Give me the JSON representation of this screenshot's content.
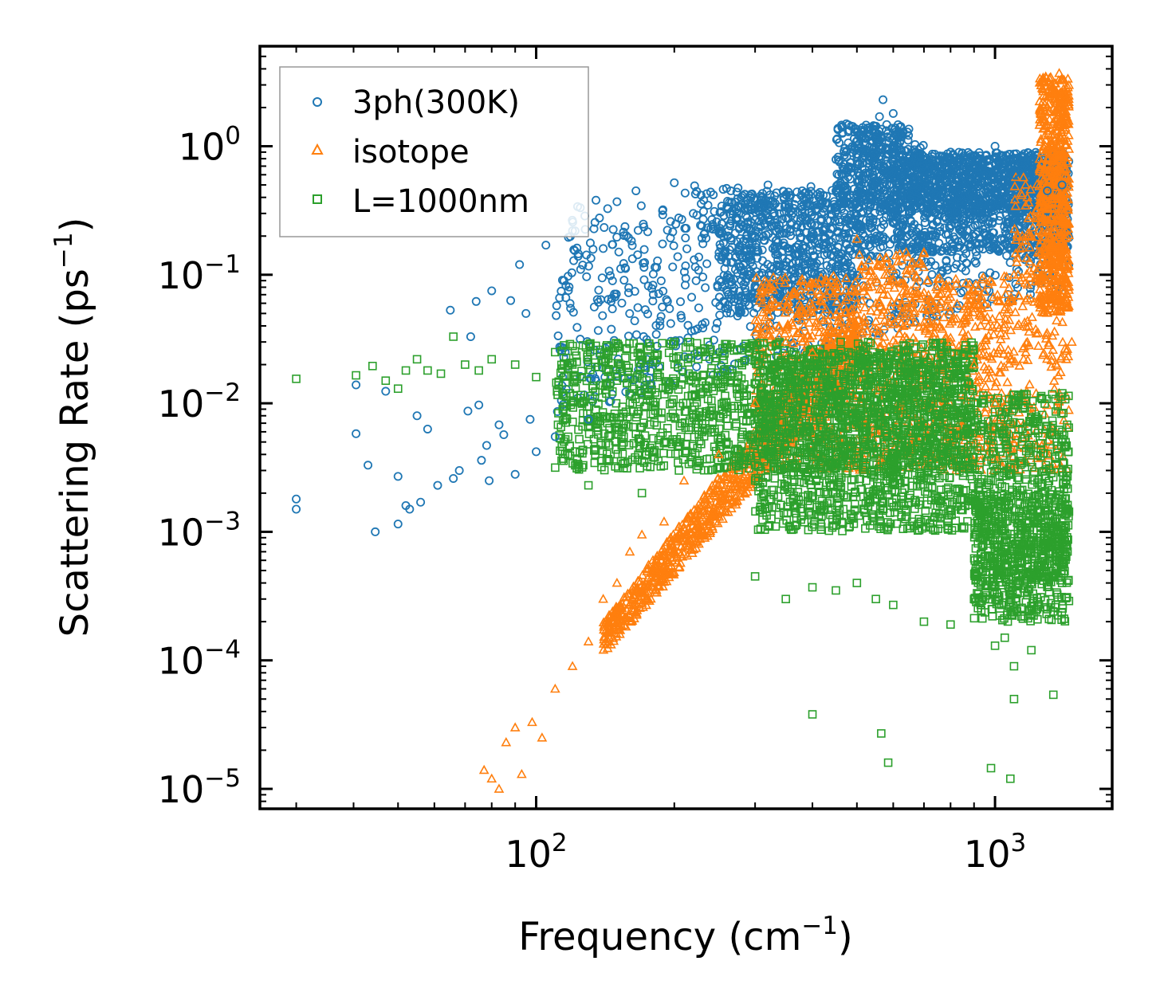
{
  "chart_data": {
    "type": "scatter",
    "title": "",
    "xlabel": "Frequency (cm",
    "xlabel_sup": "−1",
    "xlabel_close": ")",
    "ylabel": "Scattering Rate (ps",
    "ylabel_sup": "−1",
    "ylabel_close": ")",
    "xscale": "log",
    "yscale": "log",
    "xlim": [
      25,
      1800
    ],
    "ylim": [
      7e-06,
      6
    ],
    "grid": false,
    "legend_position": "top-left",
    "x_ticks": [
      {
        "value": 100,
        "base": "10",
        "exp": "2"
      },
      {
        "value": 1000,
        "base": "10",
        "exp": "3"
      }
    ],
    "y_ticks": [
      {
        "value": 1e-05,
        "base": "10",
        "exp": "−5"
      },
      {
        "value": 0.0001,
        "base": "10",
        "exp": "−4"
      },
      {
        "value": 0.001,
        "base": "10",
        "exp": "−3"
      },
      {
        "value": 0.01,
        "base": "10",
        "exp": "−2"
      },
      {
        "value": 0.1,
        "base": "10",
        "exp": "−1"
      },
      {
        "value": 1,
        "base": "10",
        "exp": "0"
      }
    ],
    "series": [
      {
        "name": "3ph(300K)",
        "marker": "circle",
        "color": "#1f77b4",
        "sample_points": [
          [
            30,
            0.0018
          ],
          [
            30,
            0.0015
          ],
          [
            40.5,
            0.0139
          ],
          [
            40.5,
            0.0058
          ],
          [
            43,
            0.0033
          ],
          [
            44.6,
            0.001
          ],
          [
            47,
            0.0124
          ],
          [
            50,
            0.0027
          ],
          [
            50,
            0.00115
          ],
          [
            52,
            0.0016
          ],
          [
            53,
            0.0015
          ],
          [
            55,
            0.008
          ],
          [
            56,
            0.0017
          ],
          [
            58,
            0.0063
          ],
          [
            61,
            0.0023
          ],
          [
            65,
            0.053
          ],
          [
            66,
            0.0026
          ],
          [
            68,
            0.003
          ],
          [
            71,
            0.0087
          ],
          [
            72,
            0.033
          ],
          [
            74,
            0.062
          ],
          [
            75,
            0.0097
          ],
          [
            76,
            0.0036
          ],
          [
            78,
            0.0047
          ],
          [
            79,
            0.0025
          ],
          [
            80,
            0.075
          ],
          [
            83,
            0.0068
          ],
          [
            85,
            0.0057
          ],
          [
            88,
            0.063
          ],
          [
            90,
            0.0028
          ],
          [
            92,
            0.12
          ],
          [
            95,
            0.05
          ],
          [
            97,
            0.0075
          ],
          [
            100,
            0.0042
          ],
          [
            105,
            0.17
          ],
          [
            110,
            0.0055
          ],
          [
            115,
            0.09
          ],
          [
            120,
            0.22
          ],
          [
            125,
            0.11
          ],
          [
            130,
            0.0075
          ],
          [
            135,
            0.38
          ],
          [
            140,
            0.16
          ],
          [
            150,
            0.37
          ],
          [
            165,
            0.45
          ],
          [
            180,
            0.07
          ],
          [
            200,
            0.52
          ],
          [
            220,
            0.3
          ],
          [
            240,
            0.44
          ],
          [
            260,
            0.47
          ],
          [
            280,
            0.4
          ],
          [
            300,
            0.2
          ],
          [
            320,
            0.5
          ],
          [
            350,
            0.42
          ],
          [
            380,
            0.45
          ],
          [
            420,
            0.36
          ],
          [
            450,
            0.45
          ],
          [
            500,
            1.3
          ],
          [
            560,
            1.7
          ],
          [
            570,
            2.3
          ],
          [
            600,
            1.8
          ],
          [
            650,
            0.8
          ],
          [
            700,
            0.55
          ],
          [
            800,
            0.9
          ],
          [
            900,
            0.52
          ],
          [
            1000,
            1.0
          ],
          [
            1100,
            0.6
          ],
          [
            1200,
            0.7
          ],
          [
            1300,
            0.45
          ],
          [
            1400,
            0.5
          ]
        ]
      },
      {
        "name": "isotope",
        "marker": "triangle",
        "color": "#ff7f0e",
        "sample_points": [
          [
            77,
            1.4e-05
          ],
          [
            80,
            1.2e-05
          ],
          [
            83,
            1e-05
          ],
          [
            86,
            2.3e-05
          ],
          [
            90,
            3e-05
          ],
          [
            93,
            1.3e-05
          ],
          [
            98,
            3.3e-05
          ],
          [
            103,
            2.5e-05
          ],
          [
            110,
            6e-05
          ],
          [
            120,
            9e-05
          ],
          [
            130,
            0.00014
          ],
          [
            140,
            0.0003
          ],
          [
            150,
            0.0004
          ],
          [
            160,
            0.0007
          ],
          [
            170,
            0.00095
          ],
          [
            190,
            0.0012
          ],
          [
            210,
            0.0025
          ],
          [
            250,
            0.004
          ],
          [
            300,
            0.01
          ],
          [
            350,
            0.03
          ],
          [
            400,
            0.025
          ],
          [
            450,
            0.08
          ],
          [
            500,
            0.19
          ],
          [
            550,
            0.06
          ],
          [
            600,
            0.11
          ],
          [
            650,
            0.05
          ],
          [
            700,
            0.15
          ],
          [
            800,
            0.03
          ],
          [
            900,
            0.02
          ],
          [
            1000,
            0.01
          ],
          [
            1100,
            0.1
          ],
          [
            1200,
            0.2
          ],
          [
            1300,
            0.8
          ],
          [
            1380,
            3.7
          ],
          [
            1450,
            0.25
          ],
          [
            1470,
            0.03
          ]
        ]
      },
      {
        "name": "L=1000nm",
        "marker": "square",
        "color": "#2ca02c",
        "sample_points": [
          [
            30,
            0.0155
          ],
          [
            40.5,
            0.0165
          ],
          [
            44,
            0.0195
          ],
          [
            47,
            0.015
          ],
          [
            50,
            0.013
          ],
          [
            52,
            0.018
          ],
          [
            55,
            0.022
          ],
          [
            58,
            0.018
          ],
          [
            62,
            0.017
          ],
          [
            66,
            0.033
          ],
          [
            70,
            0.02
          ],
          [
            75,
            0.018
          ],
          [
            80,
            0.022
          ],
          [
            90,
            0.02
          ],
          [
            100,
            0.016
          ],
          [
            110,
            0.025
          ],
          [
            120,
            0.02
          ],
          [
            130,
            0.0023
          ],
          [
            150,
            0.015
          ],
          [
            170,
            0.002
          ],
          [
            200,
            0.03
          ],
          [
            230,
            0.008
          ],
          [
            260,
            0.005
          ],
          [
            300,
            0.00045
          ],
          [
            350,
            0.0003
          ],
          [
            400,
            0.00037
          ],
          [
            450,
            0.00035
          ],
          [
            500,
            0.0004
          ],
          [
            550,
            0.0003
          ],
          [
            600,
            0.00027
          ],
          [
            700,
            0.0002
          ],
          [
            800,
            0.00019
          ],
          [
            900,
            0.0003
          ],
          [
            1000,
            0.00013
          ],
          [
            1050,
            0.00015
          ],
          [
            1100,
            9e-05
          ],
          [
            1200,
            0.00012
          ],
          [
            1300,
            0.00025
          ],
          [
            1400,
            0.0004
          ],
          [
            1420,
            0.0018
          ],
          [
            1440,
            0.0015
          ]
        ]
      }
    ],
    "isolated_markers": {
      "3ph(300K)": [],
      "L=1000nm_outliers": [
        [
          400,
          3.8e-05
        ],
        [
          565,
          2.7e-05
        ],
        [
          585,
          1.6e-05
        ],
        [
          980,
          1.45e-05
        ],
        [
          1080,
          1.2e-05
        ],
        [
          1100,
          5e-05
        ],
        [
          1340,
          5.4e-05
        ]
      ]
    }
  }
}
